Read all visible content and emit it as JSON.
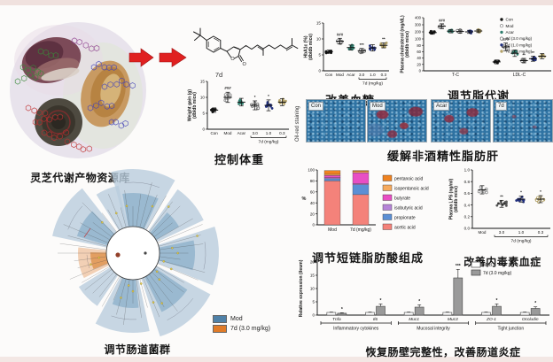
{
  "panels": {
    "library": {
      "caption": "灵芝代谢产物资源库"
    },
    "compound": {
      "label": "7d",
      "oxygen": "O"
    },
    "oil_red": {
      "caption": "缓解非酒精性脂肪肝",
      "side_label": "Oil-red staining",
      "images": [
        "Con",
        "Mod",
        "Acar",
        "7d"
      ]
    },
    "cladogram": {
      "caption": "调节肠道菌群",
      "legend": [
        {
          "label": "Mod",
          "color": "#4f81a8"
        },
        {
          "label": "7d (3.0 mg/kg)",
          "color": "#e07b28"
        }
      ]
    }
  },
  "chart_data": [
    {
      "id": "weight",
      "type": "scatter",
      "title": "控制体重",
      "ylabel": "Weight gain (g)",
      "ylabel2": "(db/db mice)",
      "ylim": [
        0,
        15
      ],
      "yticks": [
        0,
        5,
        10,
        15
      ],
      "categories": [
        "Con",
        "Mod",
        "Acar",
        "3.0",
        "1.0",
        "0.3"
      ],
      "dose_bracket": {
        "start": 3,
        "end": 5,
        "label": "7d (mg/kg)"
      },
      "series": [
        {
          "label": "Con",
          "mean": 6.0,
          "sd": 0.7,
          "n": 10,
          "color": "#111111",
          "open": false,
          "sig": ""
        },
        {
          "label": "Mod",
          "mean": 10.0,
          "sd": 1.6,
          "n": 10,
          "color": "#8a8a8a",
          "open": true,
          "sig": "###"
        },
        {
          "label": "Acar",
          "mean": 8.5,
          "sd": 1.2,
          "n": 10,
          "color": "#2f7d6d",
          "open": false,
          "sig": ""
        },
        {
          "label": "3.0",
          "mean": 7.5,
          "sd": 1.4,
          "n": 10,
          "color": "#777777",
          "open": true,
          "sig": "*"
        },
        {
          "label": "1.0",
          "mean": 7.5,
          "sd": 1.7,
          "n": 11,
          "color": "#22307e",
          "open": false,
          "sig": "*"
        },
        {
          "label": "0.3",
          "mean": 8.5,
          "sd": 1.1,
          "n": 10,
          "color": "#b3a269",
          "open": false,
          "sig": ""
        }
      ]
    },
    {
      "id": "hba1c",
      "type": "scatter",
      "title": "改善血糖",
      "ylabel": "HbA1c (%)",
      "ylabel2": "(db/db mice)",
      "ylim": [
        0,
        15
      ],
      "yticks": [
        0,
        5,
        10,
        15
      ],
      "categories": [
        "Con",
        "Mod",
        "Acar",
        "3.0",
        "1.0",
        "0.3"
      ],
      "dose_bracket": {
        "start": 3,
        "end": 5,
        "label": "7d (mg/kg)"
      },
      "series": [
        {
          "label": "Con",
          "mean": 6.0,
          "sd": 0.5,
          "n": 10,
          "color": "#111111",
          "open": false,
          "sig": ""
        },
        {
          "label": "Mod",
          "mean": 9.3,
          "sd": 0.9,
          "n": 10,
          "color": "#8a8a8a",
          "open": true,
          "sig": "###"
        },
        {
          "label": "Acar",
          "mean": 7.3,
          "sd": 0.8,
          "n": 10,
          "color": "#2f7d6d",
          "open": false,
          "sig": ""
        },
        {
          "label": "3.0",
          "mean": 6.3,
          "sd": 0.7,
          "n": 10,
          "color": "#777777",
          "open": true,
          "sig": "***"
        },
        {
          "label": "1.0",
          "mean": 7.2,
          "sd": 1.0,
          "n": 10,
          "color": "#22307e",
          "open": false,
          "sig": ""
        },
        {
          "label": "0.3",
          "mean": 8.0,
          "sd": 0.8,
          "n": 10,
          "color": "#b3a269",
          "open": false,
          "sig": "**"
        }
      ]
    },
    {
      "id": "chol",
      "type": "grouped-scatter",
      "title": "调节脂代谢",
      "ylabel": "Plasma cholesterol (mg/dL)",
      "ylabel2": "(db/db mice)",
      "ylim": [
        0,
        400
      ],
      "axis_break": {
        "at": 100,
        "upper_ticks": [
          100,
          200,
          300,
          400
        ],
        "lower_ticks": [
          0,
          20,
          40,
          60,
          80
        ]
      },
      "categories": [
        "T-C",
        "LDL-C"
      ],
      "series": [
        {
          "label": "Con",
          "color": "#111111",
          "open": false,
          "values": [
            190,
            28
          ],
          "sd": [
            24,
            6
          ],
          "sig": [
            "",
            ""
          ]
        },
        {
          "label": "Mod",
          "color": "#8a8a8a",
          "open": true,
          "values": [
            280,
            75
          ],
          "sd": [
            34,
            12
          ],
          "sig": [
            "###",
            "###"
          ]
        },
        {
          "label": "Acar",
          "color": "#2f7d6d",
          "open": false,
          "values": [
            210,
            55
          ],
          "sd": [
            24,
            10
          ],
          "sig": [
            "",
            ""
          ]
        },
        {
          "label": "7d (3.0 mg/kg)",
          "color": "#777777",
          "open": true,
          "values": [
            205,
            32
          ],
          "sd": [
            22,
            7
          ],
          "sig": [
            "",
            "**"
          ]
        },
        {
          "label": "7d (1.0 mg/kg)",
          "color": "#22307e",
          "open": false,
          "values": [
            200,
            38
          ],
          "sd": [
            22,
            8
          ],
          "sig": [
            "",
            "**"
          ]
        },
        {
          "label": "7d (0.3 mg/kg)",
          "color": "#b3a269",
          "open": false,
          "values": [
            212,
            46
          ],
          "sd": [
            22,
            8
          ],
          "sig": [
            "",
            ""
          ]
        }
      ]
    },
    {
      "id": "scfa",
      "type": "stacked-bar",
      "title": "调节短链脂肪酸组成",
      "ylabel": "%",
      "ylim": [
        0,
        100
      ],
      "yticks": [
        0,
        20,
        40,
        60,
        80,
        100
      ],
      "categories": [
        "Mod",
        "7d (mg/kg)"
      ],
      "series": [
        {
          "label": "acetic acid",
          "color": "#f4827a",
          "values": [
            80,
            55
          ]
        },
        {
          "label": "propionate",
          "color": "#5b8fd4",
          "values": [
            4,
            18
          ]
        },
        {
          "label": "isobutyric acid",
          "color": "#b684d8",
          "values": [
            2,
            2
          ]
        },
        {
          "label": "butyrate",
          "color": "#e84ec4",
          "values": [
            4,
            20
          ]
        },
        {
          "label": "isopentanoic acid",
          "color": "#f6aa5e",
          "values": [
            2,
            2
          ]
        },
        {
          "label": "pentanoic acid",
          "color": "#ef8221",
          "values": [
            7,
            2
          ]
        }
      ],
      "legend_order": [
        "pentanoic acid",
        "isopentanoic acid",
        "butyrate",
        "isobutyric acid",
        "propionate",
        "acetic acid"
      ]
    },
    {
      "id": "lps",
      "type": "scatter",
      "title": "改善内毒素血症",
      "ylabel": "Plasma LPS (ng/ml)",
      "ylabel2": "(db/db mice)",
      "ylim": [
        0,
        1
      ],
      "yticks": [
        0,
        0.2,
        0.4,
        0.6,
        0.8,
        1.0
      ],
      "categories": [
        "Mod",
        "3.0",
        "1.0",
        "0.3"
      ],
      "dose_bracket": {
        "start": 1,
        "end": 3,
        "label": "7d (mg/kg)"
      },
      "series": [
        {
          "label": "Mod",
          "mean": 0.66,
          "sd": 0.07,
          "n": 9,
          "color": "#8a8a8a",
          "open": true,
          "sig": ""
        },
        {
          "label": "3.0",
          "mean": 0.42,
          "sd": 0.06,
          "n": 10,
          "color": "#555555",
          "open": false,
          "sig": "**"
        },
        {
          "label": "1.0",
          "mean": 0.5,
          "sd": 0.05,
          "n": 11,
          "color": "#22307e",
          "open": false,
          "sig": "*"
        },
        {
          "label": "0.3",
          "mean": 0.5,
          "sd": 0.06,
          "n": 10,
          "color": "#b3a269",
          "open": true,
          "sig": "*"
        }
      ]
    },
    {
      "id": "ileum",
      "type": "grouped-bar",
      "title": "恢复肠壁完整性，改善肠道炎症",
      "ylabel": "Relative expression (ileum)",
      "ylim": [
        0,
        20
      ],
      "yticks": [
        0,
        5,
        10,
        15,
        20
      ],
      "categories": [
        "Tnfa",
        "Il6",
        "Muc1",
        "Muc3",
        "ZO-1",
        "Occludin"
      ],
      "groups": [
        {
          "label": "Inflammatory cytokines",
          "span": [
            0,
            1
          ]
        },
        {
          "label": "Mucosal integrity",
          "span": [
            2,
            3
          ]
        },
        {
          "label": "Tight junction",
          "span": [
            4,
            5
          ]
        }
      ],
      "series": [
        {
          "label": "Mod",
          "color": "#ffffff",
          "values": [
            1,
            1,
            1,
            1,
            1,
            1
          ],
          "errors": [
            0.15,
            0.15,
            0.15,
            0.15,
            0.15,
            0.15
          ]
        },
        {
          "label": "7d (3.0 mg/kg)",
          "color": "#9a9a9a",
          "values": [
            0.7,
            3.3,
            3.0,
            14,
            3.3,
            2.5
          ],
          "errors": [
            0.2,
            0.9,
            0.9,
            3.2,
            0.9,
            0.6
          ]
        }
      ],
      "sig": [
        "*",
        "*",
        "*",
        "***",
        "*",
        "*"
      ]
    }
  ]
}
